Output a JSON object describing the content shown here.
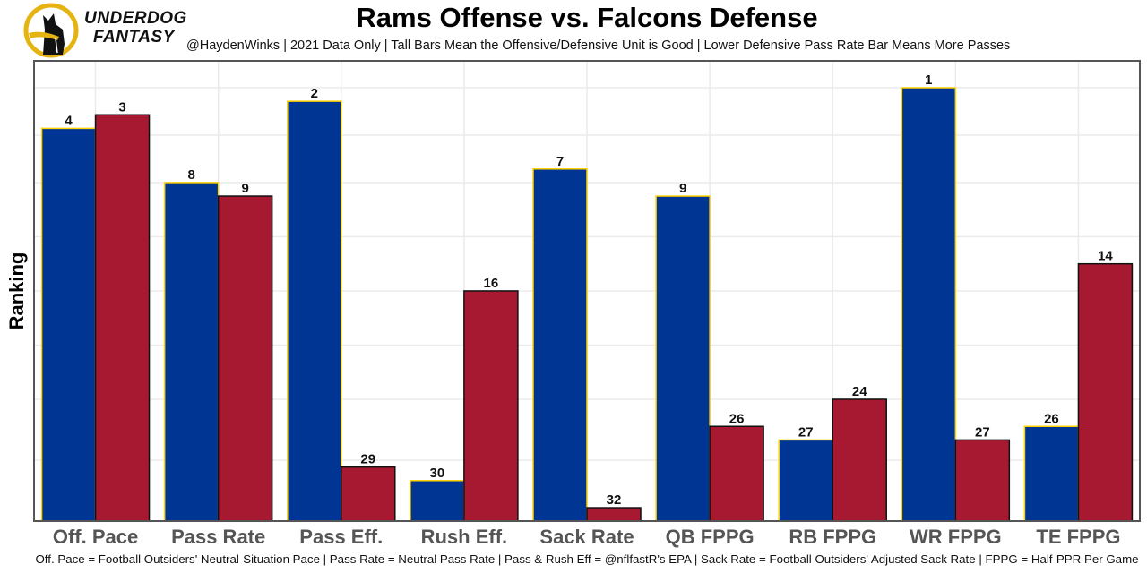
{
  "header": {
    "brand_line1": "UNDERDOG",
    "brand_line2": "FANTASY",
    "logo_icon": "underdog-dog-logo-icon",
    "title": "Rams Offense vs. Falcons Defense",
    "subtitle": "@HaydenWinks | 2021 Data Only | Tall Bars Mean the Offensive/Defensive Unit is Good | Lower Defensive Pass Rate Bar Means More Passes"
  },
  "footer": {
    "caption": "Off. Pace = Football Outsiders' Neutral-Situation Pace | Pass Rate = Neutral Pass Rate | Pass & Rush Eff = @nflfastR's EPA | Sack Rate = Football Outsiders' Adjusted Sack Rate | FPPG = Half-PPR Per Game"
  },
  "colors": {
    "offense": "#003594",
    "offense_outline": "#FFD100",
    "defense": "#A71930",
    "defense_outline": "#111111",
    "grid": "#ebebeb",
    "panel_border": "#555555",
    "tick_text": "#555555"
  },
  "chart_data": {
    "type": "bar",
    "title": "Rams Offense vs. Falcons Defense",
    "xlabel": "",
    "ylabel": "Ranking",
    "y_note": "Rank 1 is tallest; rank 32 is shortest (inverted rank scale)",
    "ylim": [
      1,
      32
    ],
    "grid": true,
    "legend": "none",
    "categories": [
      "Off. Pace",
      "Pass Rate",
      "Pass Eff.",
      "Rush Eff.",
      "Sack Rate",
      "QB FPPG",
      "RB FPPG",
      "WR FPPG",
      "TE FPPG"
    ],
    "series": [
      {
        "name": "Rams Offense",
        "values": [
          4,
          8,
          2,
          30,
          7,
          9,
          27,
          1,
          26
        ]
      },
      {
        "name": "Falcons Defense",
        "values": [
          3,
          9,
          29,
          16,
          32,
          26,
          24,
          27,
          14
        ]
      }
    ],
    "gridline_ranks": [
      1,
      4.5,
      8,
      12,
      16,
      20,
      24,
      28.5
    ]
  }
}
